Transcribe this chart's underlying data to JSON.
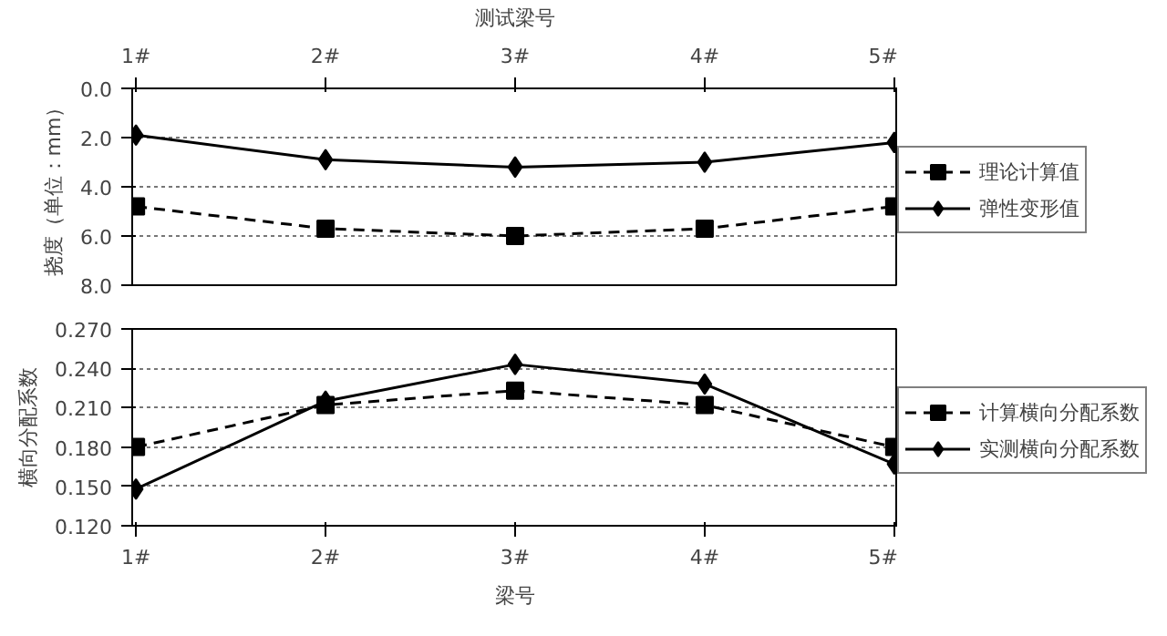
{
  "chart_data": [
    {
      "type": "line",
      "x2label": "测试梁号",
      "ylabel": "挠度（单位：mm）",
      "categories": [
        "1#",
        "2#",
        "3#",
        "4#",
        "5#"
      ],
      "ylim": [
        8,
        0
      ],
      "yticks": [
        {
          "value": 0,
          "label": "0.0"
        },
        {
          "value": 2,
          "label": "2.0"
        },
        {
          "value": 4,
          "label": "4.0"
        },
        {
          "value": 6,
          "label": "6.0"
        },
        {
          "value": 8,
          "label": "8.0"
        }
      ],
      "grid": "y",
      "legend": "right",
      "series": [
        {
          "name": "理论计算值",
          "color": "#000000",
          "values": [
            4.8,
            5.7,
            6.0,
            5.7,
            4.8
          ],
          "marker": "square",
          "line_style": "dashed"
        },
        {
          "name": "弹性变形值",
          "color": "#000000",
          "values": [
            1.9,
            2.9,
            3.2,
            3.0,
            2.2
          ],
          "marker": "diamond",
          "line_style": "solid"
        }
      ]
    },
    {
      "type": "line",
      "xlabel": "梁号",
      "ylabel": "横向分配系数",
      "categories": [
        "1#",
        "2#",
        "3#",
        "4#",
        "5#"
      ],
      "ylim": [
        0.12,
        0.27
      ],
      "yticks": [
        {
          "value": 0.12,
          "label": "0.120"
        },
        {
          "value": 0.15,
          "label": "0.150"
        },
        {
          "value": 0.18,
          "label": "0.180"
        },
        {
          "value": 0.21,
          "label": "0.210"
        },
        {
          "value": 0.24,
          "label": "0.240"
        },
        {
          "value": 0.27,
          "label": "0.270"
        }
      ],
      "grid": "y",
      "legend": "right",
      "series": [
        {
          "name": "计算横向分配系数",
          "color": "#000000",
          "values": [
            0.18,
            0.212,
            0.223,
            0.212,
            0.18
          ],
          "marker": "square",
          "line_style": "dashed"
        },
        {
          "name": "实测横向分配系数",
          "color": "#000000",
          "values": [
            0.148,
            0.215,
            0.243,
            0.228,
            0.167
          ],
          "marker": "diamond",
          "line_style": "solid"
        }
      ]
    }
  ]
}
